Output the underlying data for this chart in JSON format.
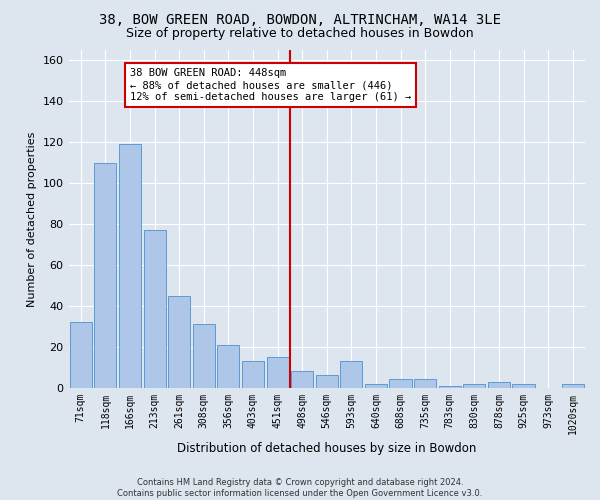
{
  "title_line1": "38, BOW GREEN ROAD, BOWDON, ALTRINCHAM, WA14 3LE",
  "title_line2": "Size of property relative to detached houses in Bowdon",
  "xlabel": "Distribution of detached houses by size in Bowdon",
  "ylabel": "Number of detached properties",
  "footer_line1": "Contains HM Land Registry data © Crown copyright and database right 2024.",
  "footer_line2": "Contains public sector information licensed under the Open Government Licence v3.0.",
  "categories": [
    "71sqm",
    "118sqm",
    "166sqm",
    "213sqm",
    "261sqm",
    "308sqm",
    "356sqm",
    "403sqm",
    "451sqm",
    "498sqm",
    "546sqm",
    "593sqm",
    "640sqm",
    "688sqm",
    "735sqm",
    "783sqm",
    "830sqm",
    "878sqm",
    "925sqm",
    "973sqm",
    "1020sqm"
  ],
  "bar_heights": [
    32,
    110,
    119,
    77,
    45,
    31,
    21,
    13,
    15,
    8,
    6,
    13,
    2,
    4,
    4,
    1,
    2,
    3,
    2,
    0,
    2
  ],
  "ylim": [
    0,
    165
  ],
  "yticks": [
    0,
    20,
    40,
    60,
    80,
    100,
    120,
    140,
    160
  ],
  "bar_color": "#aec6e8",
  "bar_edge_color": "#5b9bd5",
  "vline_color": "#cc0000",
  "vline_pos": 8.5,
  "annotation_text": "38 BOW GREEN ROAD: 448sqm\n← 88% of detached houses are smaller (446)\n12% of semi-detached houses are larger (61) →",
  "annotation_box_color": "#ffffff",
  "annotation_box_edge": "#cc0000",
  "bg_color": "#dde5ef",
  "grid_color": "#ffffff",
  "title_fontsize": 10,
  "subtitle_fontsize": 9
}
